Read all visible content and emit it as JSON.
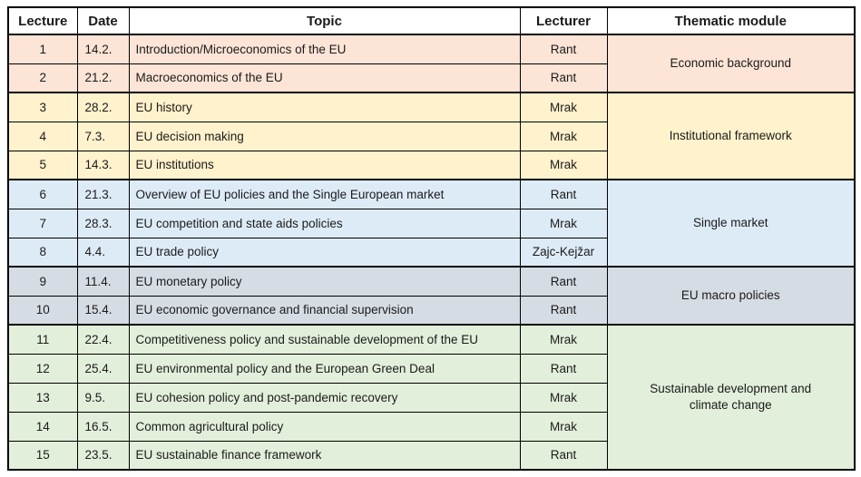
{
  "table": {
    "headers": [
      "Lecture",
      "Date",
      "Topic",
      "Lecturer",
      "Thematic module"
    ],
    "header_keys": [
      "lecture",
      "date",
      "topic",
      "lecturer",
      "thematic-module"
    ],
    "groups": [
      {
        "module": "Economic background",
        "color": "#FCE4D6",
        "rows": [
          {
            "lecture": "1",
            "date": "14.2.",
            "topic": "Introduction/Microeconomics of the EU",
            "lecturer": "Rant"
          },
          {
            "lecture": "2",
            "date": "21.2.",
            "topic": "Macroeconomics of the EU",
            "lecturer": "Rant"
          }
        ]
      },
      {
        "module": "Institutional framework",
        "color": "#FFF2CC",
        "rows": [
          {
            "lecture": "3",
            "date": "28.2.",
            "topic": "EU history",
            "lecturer": "Mrak"
          },
          {
            "lecture": "4",
            "date": "7.3.",
            "topic": "EU decision making",
            "lecturer": "Mrak"
          },
          {
            "lecture": "5",
            "date": "14.3.",
            "topic": "EU institutions",
            "lecturer": "Mrak"
          }
        ]
      },
      {
        "module": "Single market",
        "color": "#DDEBF7",
        "rows": [
          {
            "lecture": "6",
            "date": "21.3.",
            "topic": "Overview of EU policies and the Single European market",
            "lecturer": "Rant"
          },
          {
            "lecture": "7",
            "date": "28.3.",
            "topic": "EU competition and state aids policies",
            "lecturer": "Mrak"
          },
          {
            "lecture": "8",
            "date": "4.4.",
            "topic": "EU trade policy",
            "lecturer": "Zajc-Kejžar"
          }
        ]
      },
      {
        "module": "EU macro policies",
        "color": "#D6DCE4",
        "rows": [
          {
            "lecture": "9",
            "date": "11.4.",
            "topic": "EU monetary policy",
            "lecturer": "Rant"
          },
          {
            "lecture": "10",
            "date": "15.4.",
            "topic": "EU economic governance and financial supervision",
            "lecturer": "Rant"
          }
        ]
      },
      {
        "module": "Sustainable development and climate change",
        "color": "#E2EFDA",
        "rows": [
          {
            "lecture": "11",
            "date": "22.4.",
            "topic": "Competitiveness policy and sustainable development of the EU",
            "lecturer": "Mrak"
          },
          {
            "lecture": "12",
            "date": "25.4.",
            "topic": "EU environmental policy and the European Green Deal",
            "lecturer": "Rant"
          },
          {
            "lecture": "13",
            "date": "9.5.",
            "topic": "EU cohesion policy and post-pandemic recovery",
            "lecturer": "Mrak"
          },
          {
            "lecture": "14",
            "date": "16.5.",
            "topic": "Common agricultural policy",
            "lecturer": "Mrak"
          },
          {
            "lecture": "15",
            "date": "23.5.",
            "topic": "EU sustainable finance framework",
            "lecturer": "Rant"
          }
        ]
      }
    ]
  },
  "colors": {
    "border": "#000000",
    "header_bg": "#FFFFFF",
    "text": "#1B1B1B"
  }
}
